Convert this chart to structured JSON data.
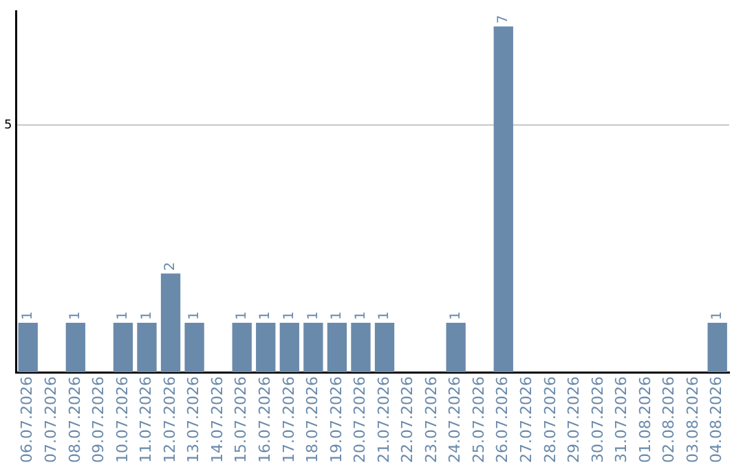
{
  "chart_data": {
    "type": "bar",
    "categories": [
      "06.07.2026",
      "07.07.2026",
      "08.07.2026",
      "09.07.2026",
      "10.07.2026",
      "11.07.2026",
      "12.07.2026",
      "13.07.2026",
      "14.07.2026",
      "15.07.2026",
      "16.07.2026",
      "17.07.2026",
      "18.07.2026",
      "19.07.2026",
      "20.07.2026",
      "21.07.2026",
      "22.07.2026",
      "23.07.2026",
      "24.07.2026",
      "25.07.2026",
      "26.07.2026",
      "27.07.2026",
      "28.07.2026",
      "29.07.2026",
      "30.07.2026",
      "31.07.2026",
      "01.08.2026",
      "02.08.2026",
      "03.08.2026",
      "04.08.2026"
    ],
    "values": [
      1,
      0,
      1,
      0,
      1,
      1,
      2,
      1,
      0,
      1,
      1,
      1,
      1,
      1,
      1,
      1,
      0,
      0,
      1,
      0,
      7,
      0,
      0,
      0,
      0,
      0,
      0,
      0,
      0,
      1
    ],
    "value_labels": [
      "1",
      null,
      "1",
      null,
      "1",
      "1",
      "2",
      "1",
      null,
      "1",
      "1",
      "1",
      "1",
      "1",
      "1",
      "1",
      null,
      null,
      "1",
      null,
      "7",
      null,
      null,
      null,
      null,
      null,
      null,
      null,
      null,
      "1"
    ],
    "color": "#6a8aab",
    "ylim": [
      0,
      7.3
    ],
    "yticks": [
      5
    ],
    "grid": "y",
    "legend": false
  }
}
